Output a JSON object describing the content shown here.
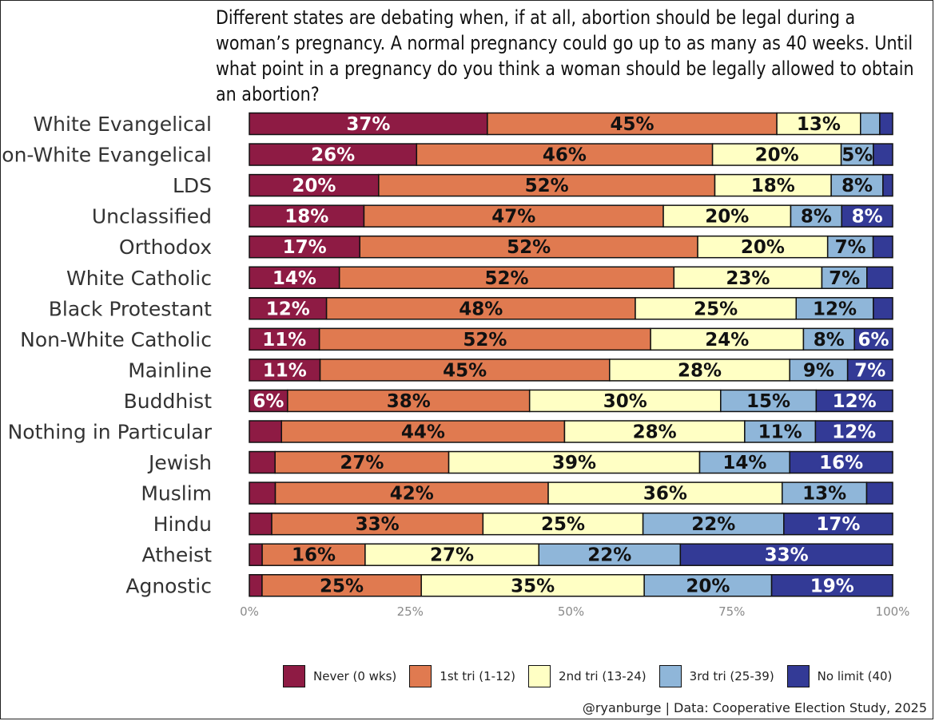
{
  "title": "Different states are debating when, if at all, abortion should be legal during a woman’s pregnancy. A normal pregnancy could go up to as many as 40 weeks. Until what point in a pregnancy do you think a woman should be legally allowed to obtain an abortion?",
  "credit": "@ryanburge | Data: Cooperative Election Study, 2025",
  "legend": [
    {
      "label": "Never (0 wks)",
      "color": "#8e1b44"
    },
    {
      "label": "1st tri (1-12)",
      "color": "#e07a50"
    },
    {
      "label": "2nd tri (13-24)",
      "color": "#ffffc4"
    },
    {
      "label": "3rd tri (25-39)",
      "color": "#8fb6d9"
    },
    {
      "label": "No limit (40)",
      "color": "#333a96"
    }
  ],
  "chart_data": {
    "type": "bar",
    "orientation": "horizontal",
    "stacked": true,
    "categories": [
      "White Evangelical",
      "Non-White Evangelical",
      "LDS",
      "Unclassified",
      "Orthodox",
      "White Catholic",
      "Black Protestant",
      "Non-White Catholic",
      "Mainline",
      "Buddhist",
      "Nothing in Particular",
      "Jewish",
      "Muslim",
      "Hindu",
      "Atheist",
      "Agnostic"
    ],
    "series": [
      {
        "name": "Never (0 wks)",
        "color": "#8e1b44",
        "text_color": "#ffffff",
        "values": [
          37,
          26,
          20,
          18,
          17,
          14,
          12,
          11,
          11,
          6,
          5,
          4,
          4,
          3.5,
          2,
          2
        ],
        "labels": [
          "37%",
          "26%",
          "20%",
          "18%",
          "17%",
          "14%",
          "12%",
          "11%",
          "11%",
          "6%",
          "",
          "",
          "",
          "",
          "",
          ""
        ]
      },
      {
        "name": "1st tri (1-12)",
        "color": "#e07a50",
        "text_color": "#111111",
        "values": [
          45,
          46,
          52,
          47,
          52,
          52,
          48,
          52,
          45,
          38,
          44,
          27,
          42,
          33,
          16,
          25
        ],
        "labels": [
          "45%",
          "46%",
          "52%",
          "47%",
          "52%",
          "52%",
          "48%",
          "52%",
          "45%",
          "38%",
          "44%",
          "27%",
          "42%",
          "33%",
          "16%",
          "25%"
        ]
      },
      {
        "name": "2nd tri (13-24)",
        "color": "#ffffc4",
        "text_color": "#111111",
        "values": [
          13,
          20,
          18,
          20,
          20,
          23,
          25,
          24,
          28,
          30,
          28,
          39,
          36,
          25,
          27,
          35
        ],
        "labels": [
          "13%",
          "20%",
          "18%",
          "20%",
          "20%",
          "23%",
          "25%",
          "24%",
          "28%",
          "30%",
          "28%",
          "39%",
          "36%",
          "25%",
          "27%",
          "35%"
        ]
      },
      {
        "name": "3rd tri (25-39)",
        "color": "#8fb6d9",
        "text_color": "#111111",
        "values": [
          3,
          5,
          8,
          8,
          7,
          7,
          12,
          8,
          9,
          15,
          11,
          14,
          13,
          22,
          22,
          20
        ],
        "labels": [
          "",
          "5%",
          "8%",
          "8%",
          "7%",
          "7%",
          "12%",
          "8%",
          "9%",
          "15%",
          "11%",
          "14%",
          "13%",
          "22%",
          "22%",
          "20%"
        ]
      },
      {
        "name": "No limit (40)",
        "color": "#333a96",
        "text_color": "#ffffff",
        "values": [
          2,
          3,
          1.5,
          8,
          3,
          4,
          3,
          6,
          7,
          12,
          12,
          16,
          4,
          17,
          33,
          19
        ],
        "labels": [
          "",
          "",
          "",
          "8%",
          "",
          "",
          "",
          "6%",
          "7%",
          "12%",
          "12%",
          "16%",
          "",
          "17%",
          "33%",
          "19%"
        ]
      }
    ],
    "x_ticks": [
      "0%",
      "25%",
      "50%",
      "75%",
      "100%"
    ],
    "xlim": [
      0,
      100
    ],
    "grid": false,
    "legend_position": "bottom"
  }
}
